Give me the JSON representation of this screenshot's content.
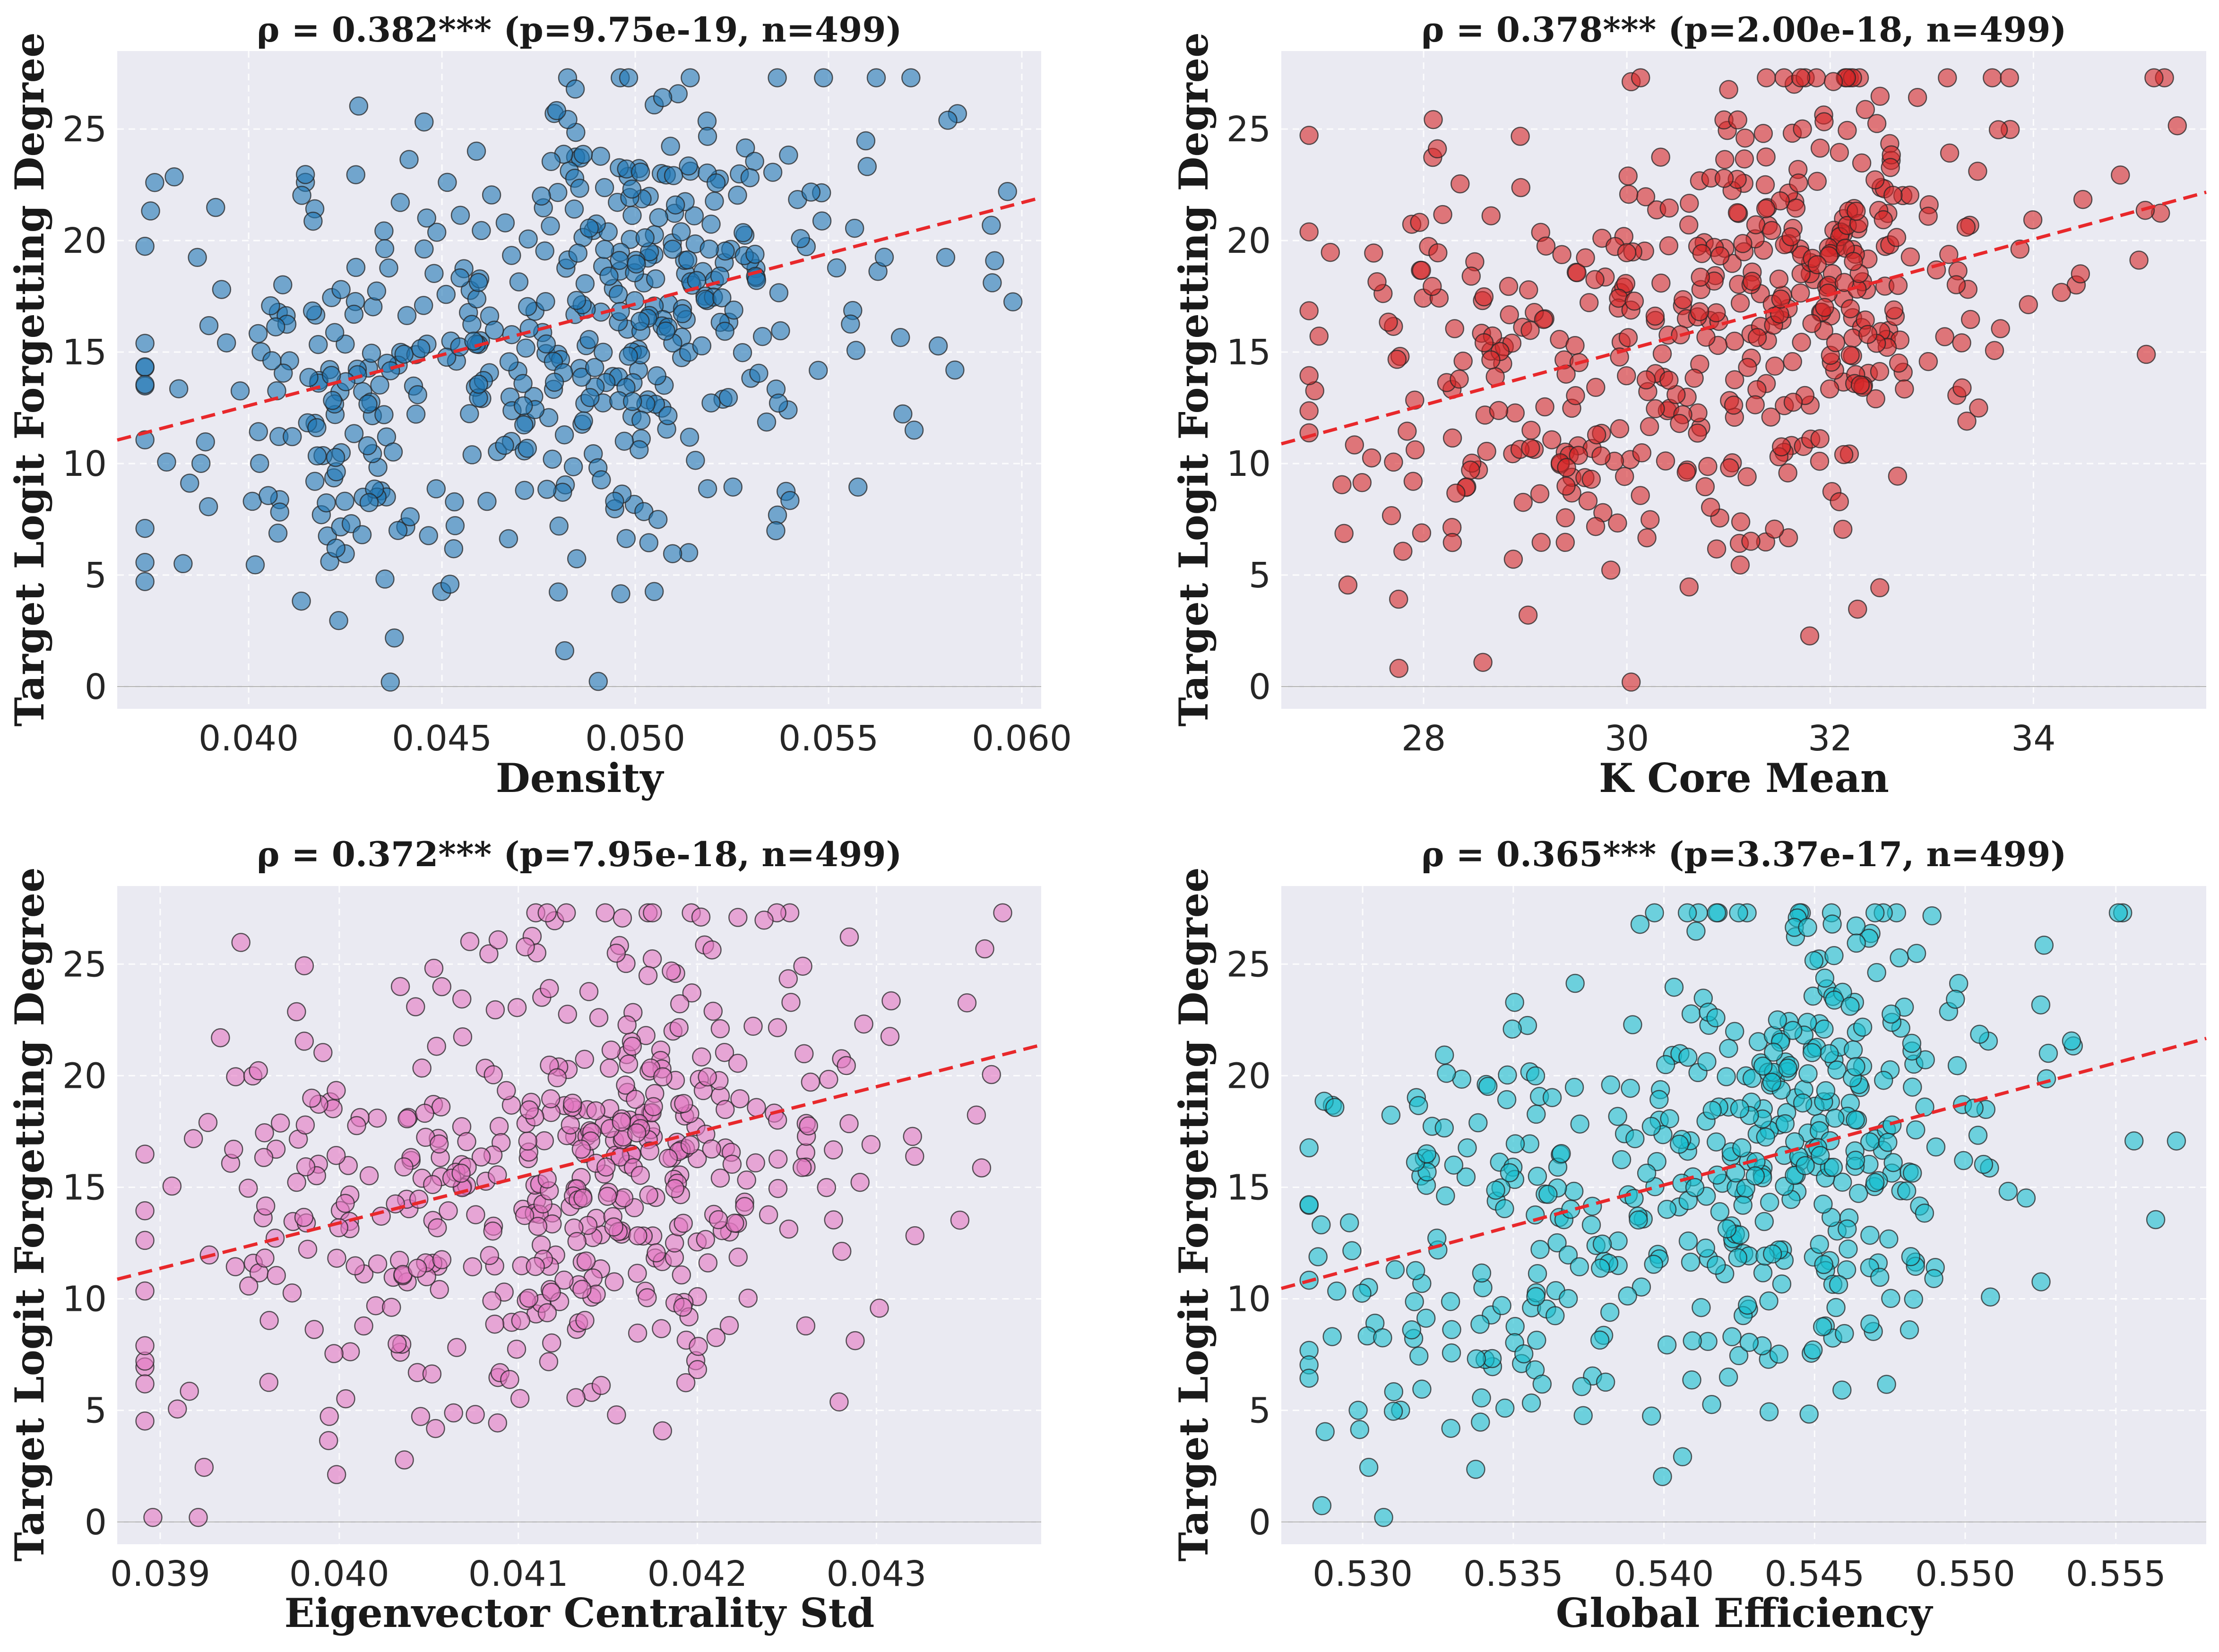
{
  "chart_data": [
    {
      "type": "scatter",
      "title": "ρ = 0.382*** (p=9.75e-19, n=499)",
      "xlabel": "Density",
      "ylabel": "Target Logit Forgetting Degree",
      "xlim": [
        0.0366,
        0.0605
      ],
      "ylim": [
        -1.0,
        28.5
      ],
      "xticks": [
        0.04,
        0.045,
        0.05,
        0.055,
        0.06
      ],
      "xtick_labels": [
        "0.040",
        "0.045",
        "0.050",
        "0.055",
        "0.060"
      ],
      "yticks": [
        0,
        5,
        10,
        15,
        20,
        25
      ],
      "ytick_labels": [
        "0",
        "5",
        "10",
        "15",
        "20",
        "25"
      ],
      "color": "#1f77b4",
      "trend": {
        "slope": 455.0,
        "intercept": -5.6
      },
      "n": 499,
      "rho": 0.382,
      "seed": 11
    },
    {
      "type": "scatter",
      "title": "ρ = 0.378*** (p=2.00e-18, n=499)",
      "xlabel": "K Core Mean",
      "ylabel": "Target Logit Forgetting Degree",
      "xlim": [
        26.6,
        35.7
      ],
      "ylim": [
        -1.0,
        28.5
      ],
      "xticks": [
        28,
        30,
        32,
        34
      ],
      "xtick_labels": [
        "28",
        "30",
        "32",
        "34"
      ],
      "yticks": [
        0,
        5,
        10,
        15,
        20,
        25
      ],
      "ytick_labels": [
        "0",
        "5",
        "10",
        "15",
        "20",
        "25"
      ],
      "color": "#d62728",
      "trend": {
        "slope": 1.24,
        "intercept": -22.1
      },
      "n": 499,
      "rho": 0.378,
      "seed": 23
    },
    {
      "type": "scatter",
      "title": "ρ = 0.372*** (p=7.95e-18, n=499)",
      "xlabel": "Eigenvector Centrality Std",
      "ylabel": "Target Logit Forgetting Degree",
      "xlim": [
        0.03876,
        0.04392
      ],
      "ylim": [
        -1.0,
        28.5
      ],
      "xticks": [
        0.039,
        0.04,
        0.041,
        0.042,
        0.043
      ],
      "xtick_labels": [
        "0.039",
        "0.040",
        "0.041",
        "0.042",
        "0.043"
      ],
      "yticks": [
        0,
        5,
        10,
        15,
        20,
        25
      ],
      "ytick_labels": [
        "0",
        "5",
        "10",
        "15",
        "20",
        "25"
      ],
      "color": "#e377c2",
      "trend": {
        "slope": 2035.0,
        "intercept": -68.0
      },
      "n": 499,
      "rho": 0.372,
      "seed": 37
    },
    {
      "type": "scatter",
      "title": "ρ = 0.365*** (p=3.37e-17, n=499)",
      "xlabel": "Global Efficiency",
      "ylabel": "Target Logit Forgetting Degree",
      "xlim": [
        0.5273,
        0.558
      ],
      "ylim": [
        -1.0,
        28.5
      ],
      "xticks": [
        0.53,
        0.535,
        0.54,
        0.545,
        0.55,
        0.555
      ],
      "xtick_labels": [
        "0.530",
        "0.535",
        "0.540",
        "0.545",
        "0.550",
        "0.555"
      ],
      "yticks": [
        0,
        5,
        10,
        15,
        20,
        25
      ],
      "ytick_labels": [
        "0",
        "5",
        "10",
        "15",
        "20",
        "25"
      ],
      "color": "#17becf",
      "trend": {
        "slope": 365.0,
        "intercept": -182.0
      },
      "n": 499,
      "rho": 0.365,
      "seed": 53
    }
  ]
}
